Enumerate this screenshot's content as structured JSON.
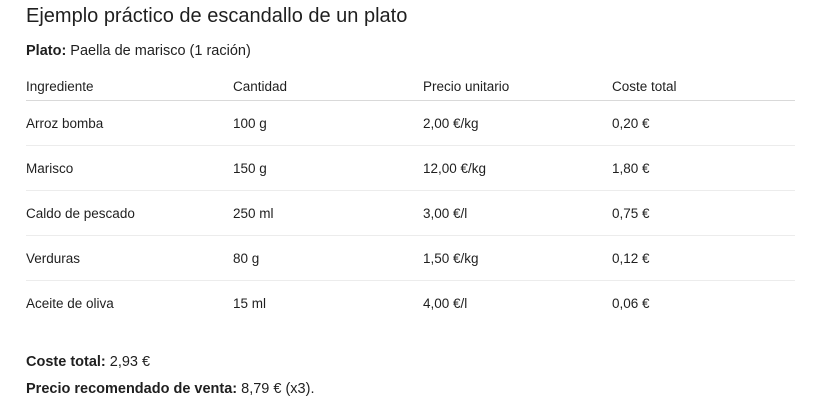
{
  "title": "Ejemplo práctico de escandallo de un plato",
  "dish": {
    "label": "Plato:",
    "value": "Paella de marisco (1 ración)"
  },
  "table": {
    "columns": [
      "Ingrediente",
      "Cantidad",
      "Precio unitario",
      "Coste total"
    ],
    "rows": [
      [
        "Arroz bomba",
        "100 g",
        "2,00 €/kg",
        "0,20 €"
      ],
      [
        "Marisco",
        "150 g",
        "12,00 €/kg",
        "1,80 €"
      ],
      [
        "Caldo de pescado",
        "250 ml",
        "3,00 €/l",
        "0,75 €"
      ],
      [
        "Verduras",
        "80 g",
        "1,50 €/kg",
        "0,12 €"
      ],
      [
        "Aceite de oliva",
        "15 ml",
        "4,00 €/l",
        "0,06 €"
      ]
    ]
  },
  "summary": [
    {
      "label": "Coste total:",
      "value": "2,93 €"
    },
    {
      "label": "Precio recomendado de venta:",
      "value": "8,79 € (x3)."
    }
  ]
}
